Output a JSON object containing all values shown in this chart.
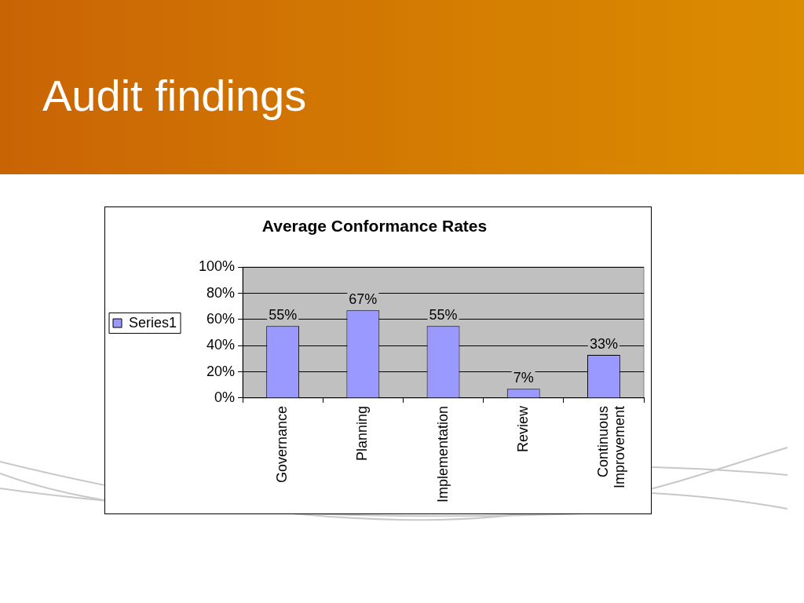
{
  "chart_data": {
    "type": "bar",
    "title": "Audit findings",
    "subtitle": "Average Conformance Rates",
    "categories": [
      "Governance",
      "Planning",
      "Implementation",
      "Review",
      "Continuous Improvement"
    ],
    "series": [
      {
        "name": "Series1",
        "color": "#9999ff",
        "values": [
          55,
          67,
          55,
          7,
          33
        ],
        "value_labels": [
          "55%",
          "67%",
          "55%",
          "7%",
          "33%"
        ]
      }
    ],
    "ylim": [
      0,
      100
    ],
    "yticks": [
      {
        "value": 0,
        "label": "0%"
      },
      {
        "value": 20,
        "label": "20%"
      },
      {
        "value": 40,
        "label": "40%"
      },
      {
        "value": 60,
        "label": "60%"
      },
      {
        "value": 80,
        "label": "80%"
      },
      {
        "value": 100,
        "label": "100%"
      }
    ],
    "grid": "y",
    "legend": "left"
  }
}
